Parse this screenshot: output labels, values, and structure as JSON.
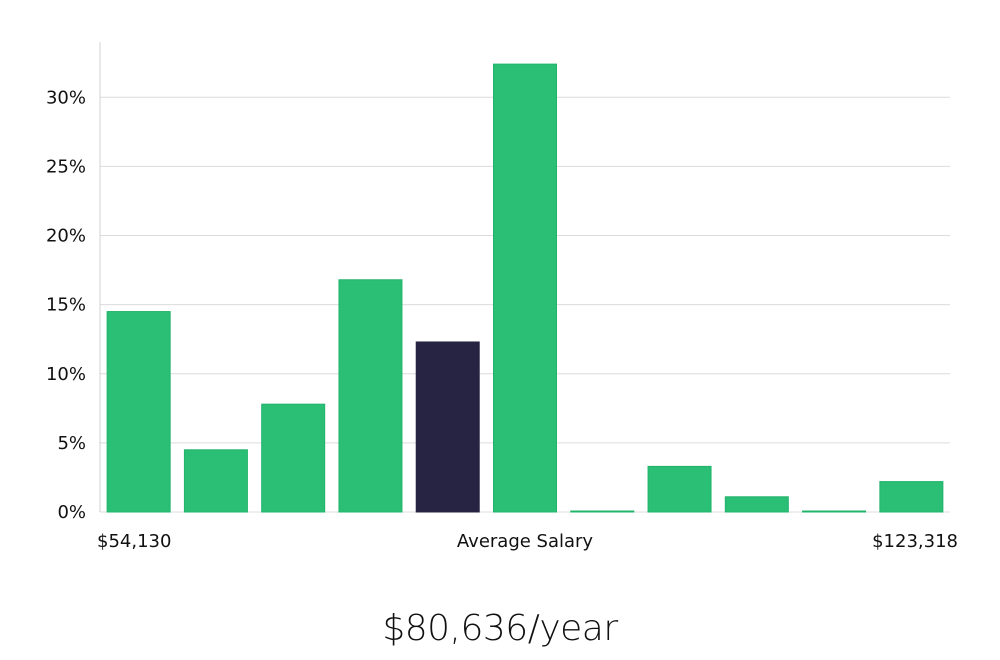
{
  "chart_data": {
    "type": "bar",
    "title": "",
    "ylabel": "",
    "ylim": [
      0,
      34
    ],
    "yticks": [
      0,
      5,
      10,
      15,
      20,
      25,
      30
    ],
    "ytick_labels": [
      "0%",
      "5%",
      "10%",
      "15%",
      "20%",
      "25%",
      "30%"
    ],
    "grid": true,
    "x_labels": {
      "left": "$54,130",
      "center": "Average Salary",
      "right": "$123,318"
    },
    "values": [
      14.5,
      4.5,
      7.8,
      16.8,
      12.3,
      32.4,
      0.05,
      3.3,
      1.1,
      0.05,
      2.2
    ],
    "highlight_index": 4,
    "colors": {
      "bar": "#2bbf76",
      "bar_stroke": "#22b36b",
      "highlight": "#272443",
      "grid": "#dcdcdc",
      "axis": "#d0d0d0"
    }
  },
  "average_salary": "$80,636/year"
}
